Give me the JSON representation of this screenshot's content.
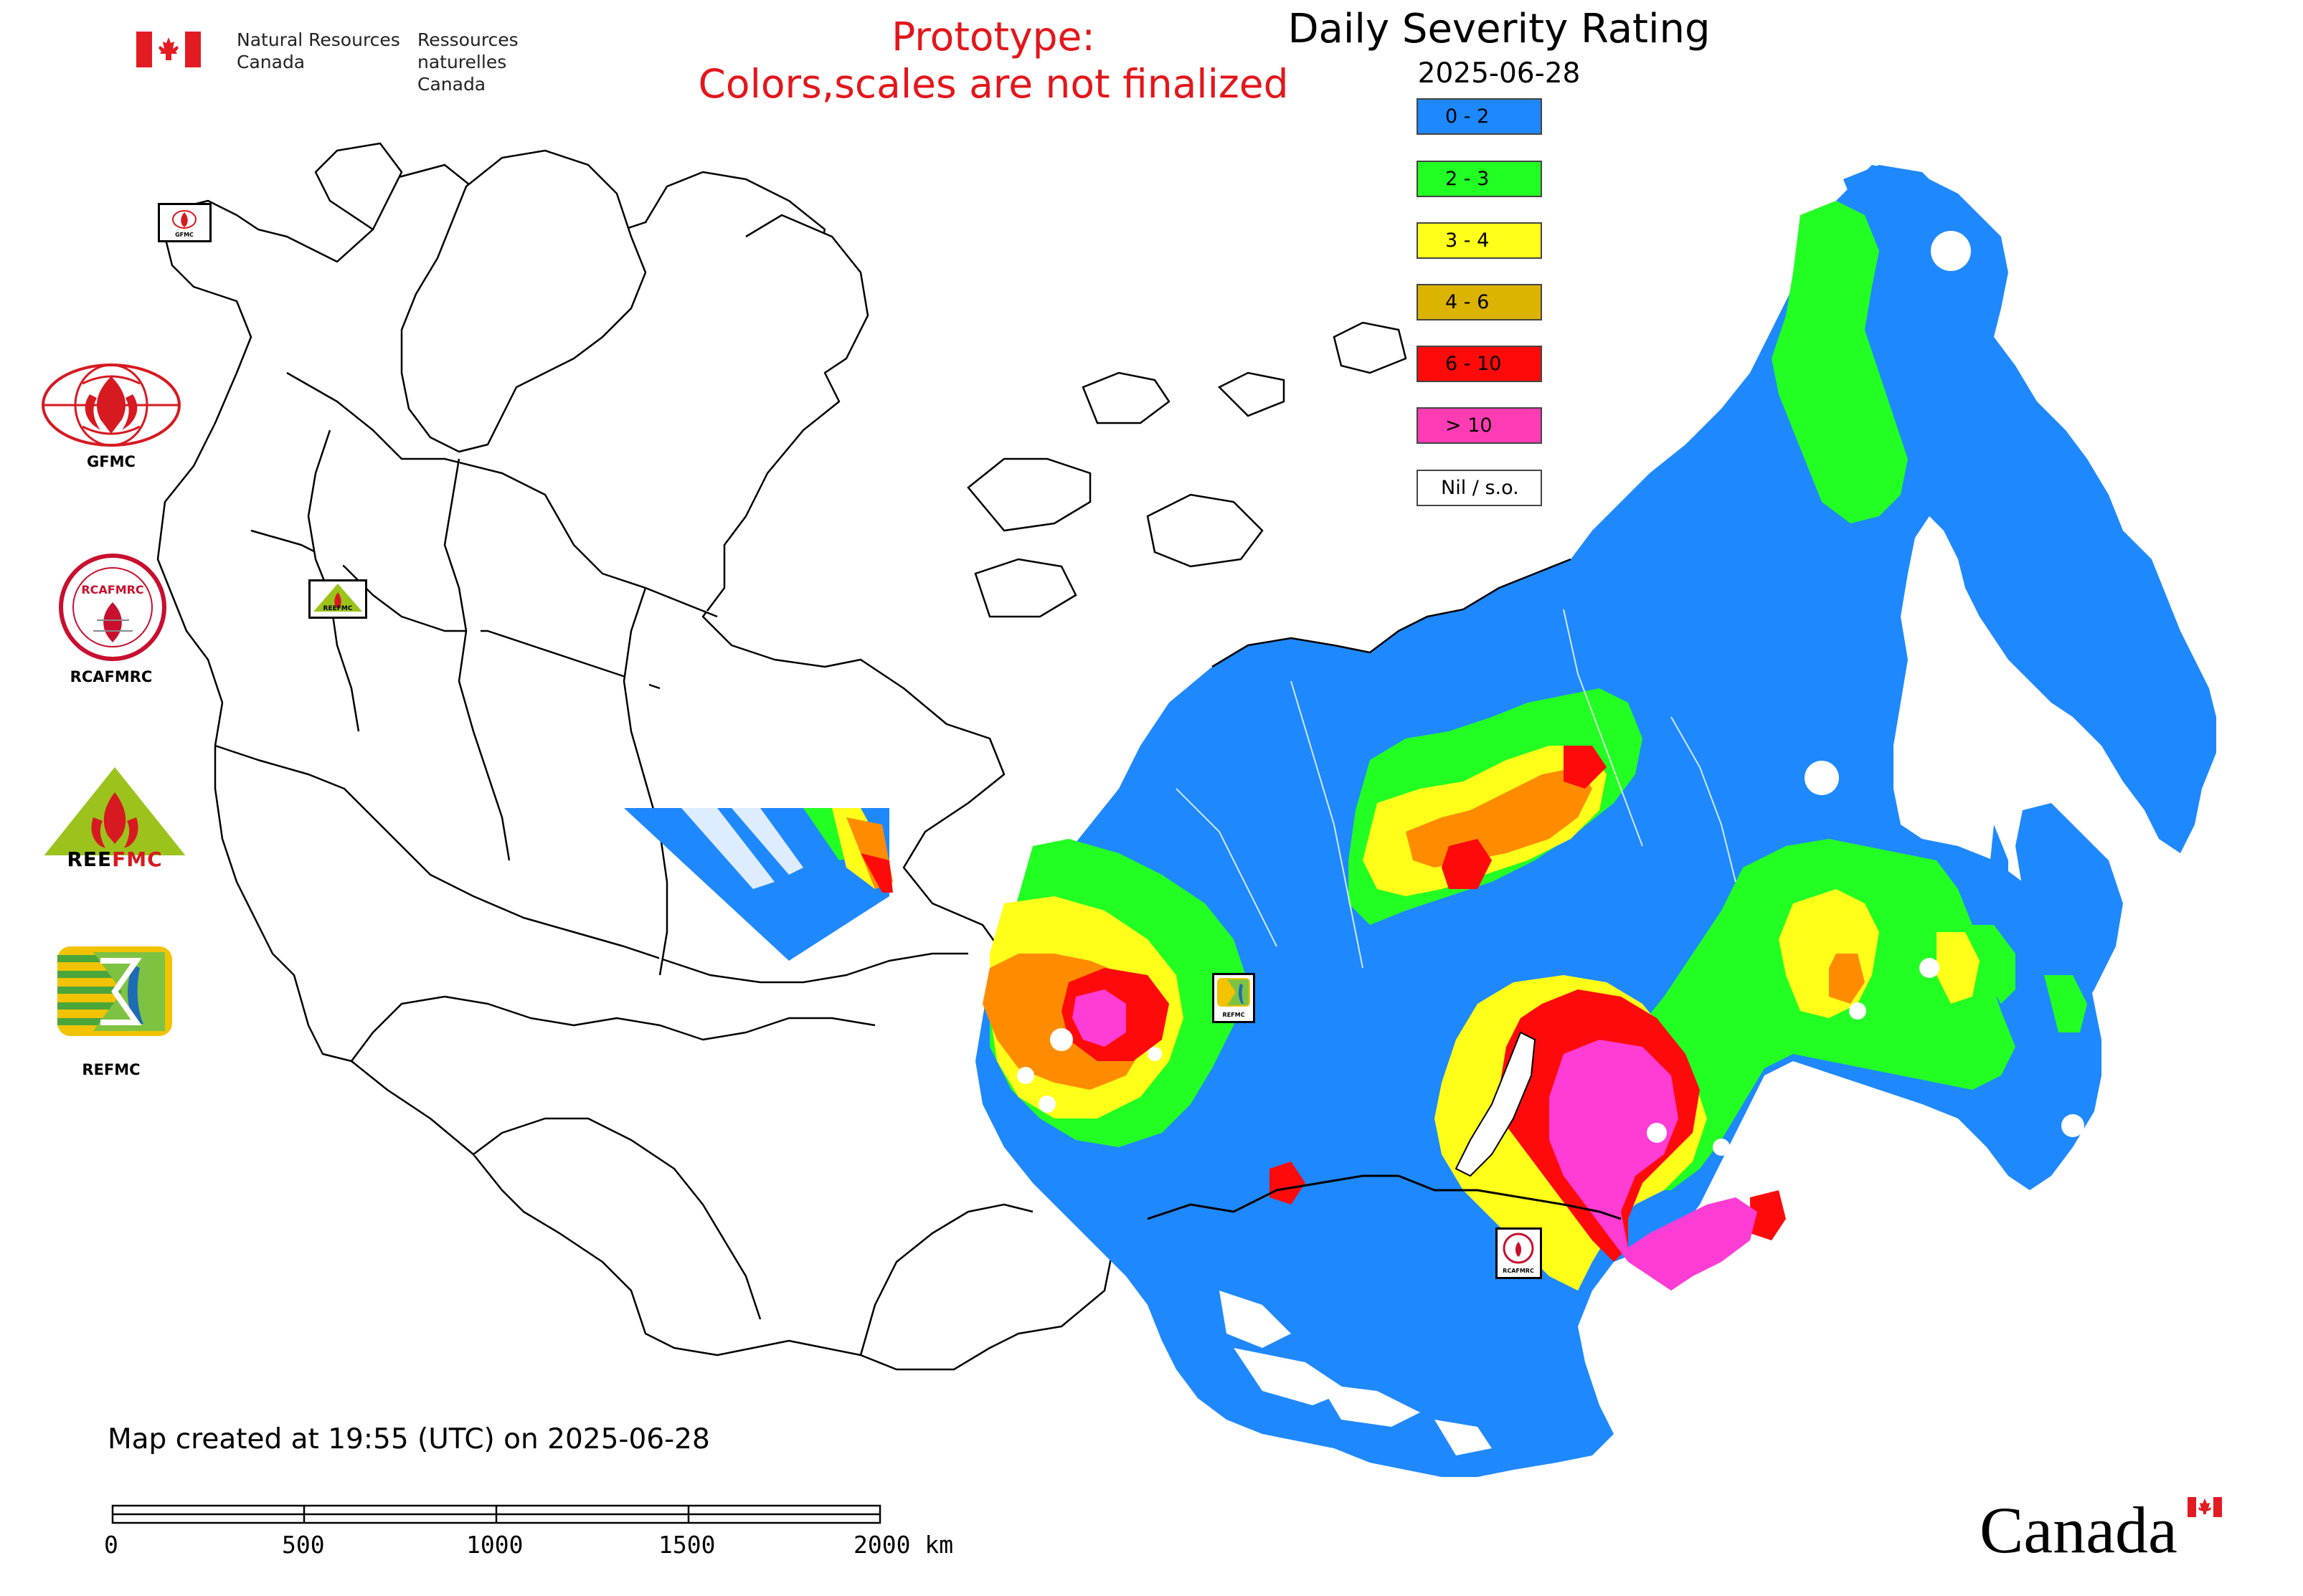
{
  "header": {
    "org_en_line1": "Natural Resources",
    "org_en_line2": "Canada",
    "org_fr_line1": "Ressources naturelles",
    "org_fr_line2": "Canada",
    "prototype_line1": "Prototype:",
    "prototype_line2": "Colors,scales are not finalized"
  },
  "legend": {
    "title": "Daily Severity Rating",
    "date": "2025-06-28",
    "classes": [
      {
        "label": "0 - 2",
        "color": "#1e88ff"
      },
      {
        "label": "2 - 3",
        "color": "#22ff22"
      },
      {
        "label": "3 - 4",
        "color": "#ffff19"
      },
      {
        "label": "4 - 6",
        "color": "#dcb400"
      },
      {
        "label": "6 - 10",
        "color": "#ff0a0a"
      },
      {
        "label": "> 10",
        "color": "#ff3cb4"
      },
      {
        "label": "Nil / s.o.",
        "color": "#ffffff"
      }
    ]
  },
  "logos": [
    {
      "name": "gfmc",
      "label": "GFMC"
    },
    {
      "name": "rcafmrc",
      "label": "RCAFMRC"
    },
    {
      "name": "reefmc",
      "label": "REEFMC"
    },
    {
      "name": "refmc",
      "label": "REFMC"
    }
  ],
  "map_markers": [
    {
      "name": "gfmc",
      "label": "GFMC"
    },
    {
      "name": "reefmc",
      "label": "REEFMC"
    },
    {
      "name": "refmc",
      "label": "REFMC"
    },
    {
      "name": "rcafmrc",
      "label": "RCAFMRC"
    }
  ],
  "footer": {
    "map_created": "Map created at 19:55 (UTC) on 2025-06-28",
    "scale_labels": [
      "0",
      "500",
      "1000",
      "1500",
      "2000 km"
    ],
    "wordmark": "Canada"
  }
}
